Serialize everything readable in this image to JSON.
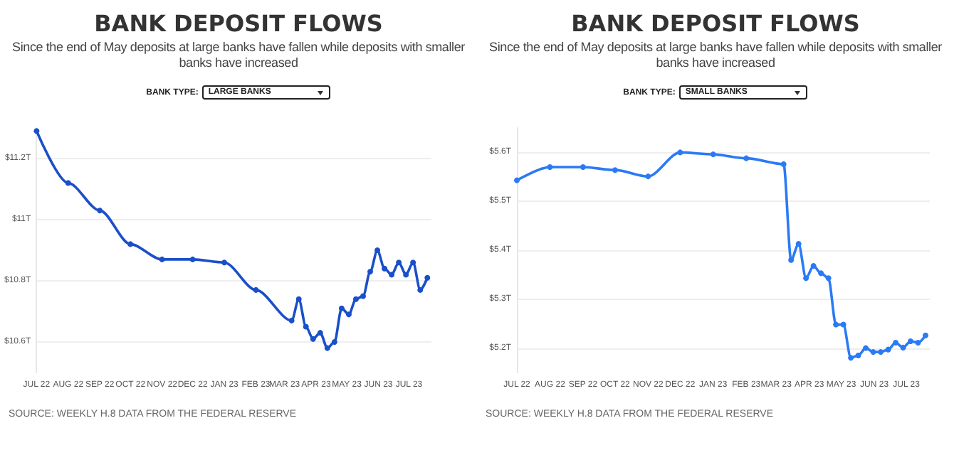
{
  "chart_data": [
    {
      "type": "line",
      "title": "BANK DEPOSIT FLOWS",
      "subtitle": "Since the end of May deposits at large banks have fallen while deposits with smaller banks have increased",
      "annotations": [
        "BANK TYPE:",
        "LARGE BANKS",
        "SOURCE: WEEKLY H.8 DATA FROM THE FEDERAL RESERVE"
      ],
      "x": [
        "2022-07-01",
        "2022-08-01",
        "2022-09-01",
        "2022-10-01",
        "2022-11-01",
        "2022-12-01",
        "2023-01-01",
        "2023-02-01",
        "2023-03-08",
        "2023-03-15",
        "2023-03-22",
        "2023-03-29",
        "2023-04-05",
        "2023-04-12",
        "2023-04-19",
        "2023-04-26",
        "2023-05-03",
        "2023-05-10",
        "2023-05-17",
        "2023-05-24",
        "2023-05-31",
        "2023-06-07",
        "2023-06-14",
        "2023-06-21",
        "2023-06-28",
        "2023-07-05",
        "2023-07-12",
        "2023-07-19"
      ],
      "series": [
        {
          "color": "#1a4fc9",
          "values": [
            11.29,
            11.12,
            11.03,
            10.92,
            10.87,
            10.87,
            10.86,
            10.77,
            10.67,
            10.74,
            10.65,
            10.61,
            10.63,
            10.58,
            10.6,
            10.71,
            10.69,
            10.74,
            10.75,
            10.83,
            10.9,
            10.84,
            10.82,
            10.86,
            10.82,
            10.86,
            10.77,
            10.81
          ]
        }
      ],
      "xlim": [
        "2022-07-01",
        "2023-07-23"
      ],
      "xticks": [
        {
          "value": "2022-07-01",
          "label": "JUL 22"
        },
        {
          "value": "2022-08-01",
          "label": "AUG 22"
        },
        {
          "value": "2022-09-01",
          "label": "SEP 22"
        },
        {
          "value": "2022-10-01",
          "label": "OCT 22"
        },
        {
          "value": "2022-11-01",
          "label": "NOV 22"
        },
        {
          "value": "2022-12-01",
          "label": "DEC 22"
        },
        {
          "value": "2023-01-01",
          "label": "JAN 23"
        },
        {
          "value": "2023-02-01",
          "label": "FEB 23"
        },
        {
          "value": "2023-03-01",
          "label": "MAR 23"
        },
        {
          "value": "2023-04-01",
          "label": "APR 23"
        },
        {
          "value": "2023-05-01",
          "label": "MAY 23"
        },
        {
          "value": "2023-06-01",
          "label": "JUN 23"
        },
        {
          "value": "2023-07-01",
          "label": "JUL 23"
        }
      ],
      "ylim": [
        10.5,
        11.3
      ],
      "yticks": [
        {
          "value": 10.6,
          "label": "$10.6T"
        },
        {
          "value": 10.8,
          "label": "$10.8T"
        },
        {
          "value": 11,
          "label": "$11T"
        },
        {
          "value": 11.2,
          "label": "$11.2T"
        }
      ],
      "grid": "y",
      "marker": "circle"
    },
    {
      "type": "line",
      "title": "BANK DEPOSIT FLOWS",
      "subtitle": "Since the end of May deposits at large banks have fallen while deposits with smaller banks have increased",
      "annotations": [
        "BANK TYPE:",
        "SMALL BANKS",
        "SOURCE: WEEKLY H.8 DATA FROM THE FEDERAL RESERVE"
      ],
      "x": [
        "2022-07-01",
        "2022-08-01",
        "2022-09-01",
        "2022-10-01",
        "2022-11-01",
        "2022-12-01",
        "2023-01-01",
        "2023-02-01",
        "2023-03-08",
        "2023-03-15",
        "2023-03-22",
        "2023-03-29",
        "2023-04-05",
        "2023-04-12",
        "2023-04-19",
        "2023-04-26",
        "2023-05-03",
        "2023-05-10",
        "2023-05-17",
        "2023-05-24",
        "2023-05-31",
        "2023-06-07",
        "2023-06-14",
        "2023-06-21",
        "2023-06-28",
        "2023-07-05",
        "2023-07-12",
        "2023-07-19"
      ],
      "series": [
        {
          "color": "#2a7af5",
          "values": [
            5.543,
            5.57,
            5.57,
            5.564,
            5.551,
            5.6,
            5.596,
            5.588,
            5.576,
            5.38,
            5.413,
            5.343,
            5.368,
            5.353,
            5.343,
            5.248,
            5.248,
            5.18,
            5.185,
            5.2,
            5.192,
            5.192,
            5.197,
            5.211,
            5.201,
            5.214,
            5.211,
            5.226
          ]
        }
      ],
      "xlim": [
        "2022-07-01",
        "2023-07-23"
      ],
      "xticks": [
        {
          "value": "2022-07-01",
          "label": "JUL 22"
        },
        {
          "value": "2022-08-01",
          "label": "AUG 22"
        },
        {
          "value": "2022-09-01",
          "label": "SEP 22"
        },
        {
          "value": "2022-10-01",
          "label": "OCT 22"
        },
        {
          "value": "2022-11-01",
          "label": "NOV 22"
        },
        {
          "value": "2022-12-01",
          "label": "DEC 22"
        },
        {
          "value": "2023-01-01",
          "label": "JAN 23"
        },
        {
          "value": "2023-02-01",
          "label": "FEB 23"
        },
        {
          "value": "2023-03-01",
          "label": "MAR 23"
        },
        {
          "value": "2023-04-01",
          "label": "APR 23"
        },
        {
          "value": "2023-05-01",
          "label": "MAY 23"
        },
        {
          "value": "2023-06-01",
          "label": "JUN 23"
        },
        {
          "value": "2023-07-01",
          "label": "JUL 23"
        }
      ],
      "ylim": [
        5.15,
        5.65
      ],
      "yticks": [
        {
          "value": 5.2,
          "label": "$5.2T"
        },
        {
          "value": 5.3,
          "label": "$5.3T"
        },
        {
          "value": 5.4,
          "label": "$5.4T"
        },
        {
          "value": 5.5,
          "label": "$5.5T"
        },
        {
          "value": 5.6,
          "label": "$5.6T"
        }
      ],
      "grid": "y",
      "marker": "circle"
    }
  ]
}
